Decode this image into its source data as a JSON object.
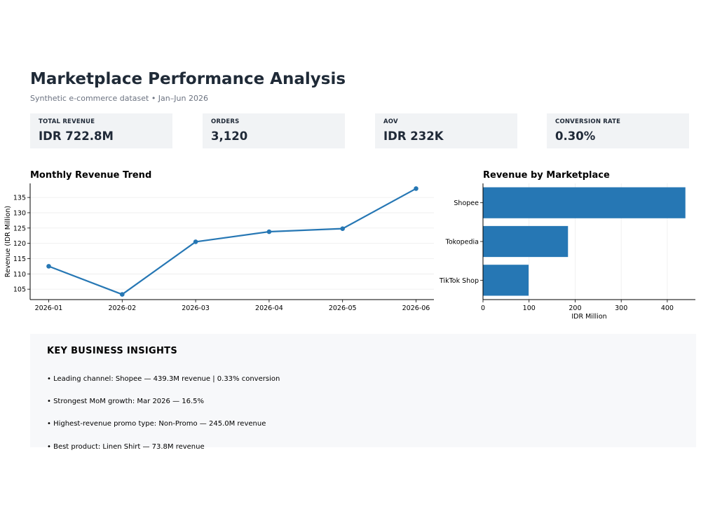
{
  "header": {
    "title": "Marketplace Performance Analysis",
    "subtitle": "Synthetic e-commerce dataset • Jan–Jun 2026"
  },
  "kpis": [
    {
      "label": "TOTAL REVENUE",
      "value": "IDR 722.8M"
    },
    {
      "label": "ORDERS",
      "value": "3,120"
    },
    {
      "label": "AOV",
      "value": "IDR 232K"
    },
    {
      "label": "CONVERSION RATE",
      "value": "0.30%"
    }
  ],
  "colors": {
    "series": "#2677b4",
    "grid": "#ececec",
    "axis": "#000000"
  },
  "chart_data": [
    {
      "type": "line",
      "title": "Monthly Revenue Trend",
      "xlabel": "",
      "ylabel": "Revenue (IDR Million)",
      "categories": [
        "2026-01",
        "2026-02",
        "2026-03",
        "2026-04",
        "2026-05",
        "2026-06"
      ],
      "values": [
        112.5,
        103.3,
        120.5,
        123.8,
        124.8,
        137.9
      ],
      "yticks": [
        105,
        110,
        115,
        120,
        125,
        130,
        135
      ],
      "ylim": [
        101.6,
        139.6
      ],
      "grid": true
    },
    {
      "type": "bar",
      "orientation": "horizontal",
      "title": "Revenue by Marketplace",
      "xlabel": "IDR Million",
      "ylabel": "",
      "categories": [
        "Shopee",
        "Tokopedia",
        "TikTok Shop"
      ],
      "values": [
        439.3,
        184.5,
        99.0
      ],
      "xticks": [
        0,
        100,
        200,
        300,
        400
      ],
      "xlim": [
        0,
        461
      ],
      "grid": true
    }
  ],
  "insights": {
    "title": "KEY BUSINESS INSIGHTS",
    "items": [
      "• Leading channel: Shopee — 439.3M revenue | 0.33% conversion",
      "• Strongest MoM growth: Mar 2026 — 16.5%",
      "• Highest-revenue promo type: Non-Promo — 245.0M revenue",
      "• Best product: Linen Shirt — 73.8M revenue"
    ]
  }
}
